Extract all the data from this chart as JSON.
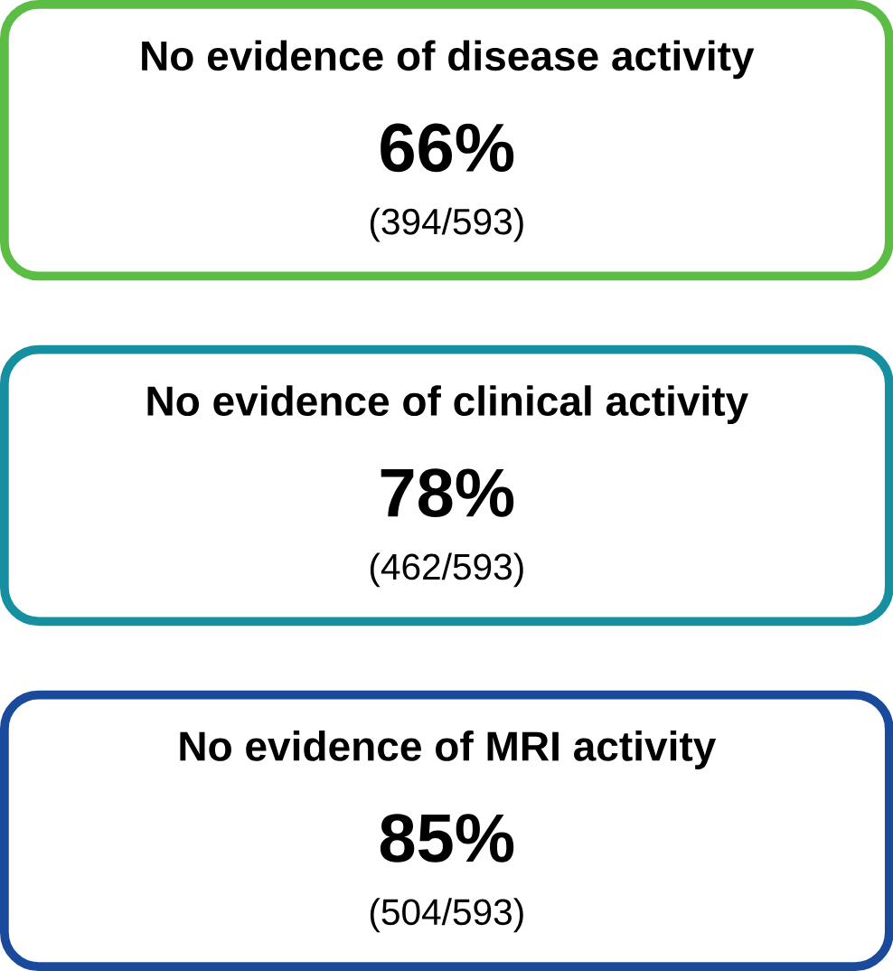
{
  "chart_data": {
    "type": "other",
    "categories": [
      "No evidence of disease activity",
      "No evidence of clinical activity",
      "No evidence of MRI activity"
    ],
    "values": [
      66,
      78,
      85
    ],
    "data_labels": true,
    "ylabel": "%",
    "annotations": [
      "(394/593)",
      "(462/593)",
      "(504/593)"
    ],
    "colors": [
      "#5cbd44",
      "#1690a0",
      "#1a4a9c"
    ]
  }
}
